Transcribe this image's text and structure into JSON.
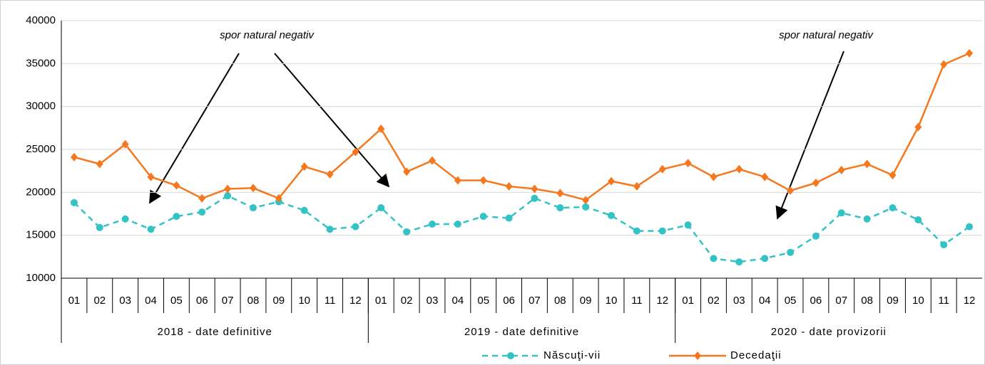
{
  "chart_data": {
    "type": "line",
    "categories": [
      "01",
      "02",
      "03",
      "04",
      "05",
      "06",
      "07",
      "08",
      "09",
      "10",
      "11",
      "12",
      "01",
      "02",
      "03",
      "04",
      "05",
      "06",
      "07",
      "08",
      "09",
      "10",
      "11",
      "12",
      "01",
      "02",
      "03",
      "04",
      "05",
      "06",
      "07",
      "08",
      "09",
      "10",
      "11",
      "12"
    ],
    "groups": [
      "2018 - date definitive",
      "2019 - date definitive",
      "2020 - date provizorii"
    ],
    "series": [
      {
        "name": "Născuţi-vii",
        "color": "#33c3c6",
        "dashed": true,
        "marker": "circle",
        "values": [
          18800,
          15900,
          16900,
          15700,
          17200,
          17700,
          19600,
          18200,
          18900,
          17900,
          15700,
          16000,
          18200,
          15400,
          16300,
          16300,
          17200,
          17000,
          19300,
          18200,
          18300,
          17300,
          15500,
          15500,
          16200,
          12300,
          11900,
          12300,
          13000,
          14900,
          17600,
          16900,
          18200,
          16800,
          13900,
          16000
        ]
      },
      {
        "name": "Decedaţii",
        "color": "#f5781e",
        "dashed": false,
        "marker": "diamond",
        "values": [
          24100,
          23300,
          25600,
          21800,
          20800,
          19300,
          20400,
          20500,
          19300,
          23000,
          22100,
          24700,
          27400,
          22400,
          23700,
          21400,
          21400,
          20700,
          20400,
          19900,
          19100,
          21300,
          20700,
          22700,
          23400,
          21800,
          22700,
          21800,
          20200,
          21100,
          22600,
          23300,
          22000,
          27600,
          34900,
          36200
        ]
      }
    ],
    "annotations": [
      "spor natural negativ",
      "spor natural negativ"
    ],
    "ylim": [
      10000,
      40000
    ],
    "yticks": [
      10000,
      15000,
      20000,
      25000,
      30000,
      35000,
      40000
    ],
    "grid": true
  }
}
